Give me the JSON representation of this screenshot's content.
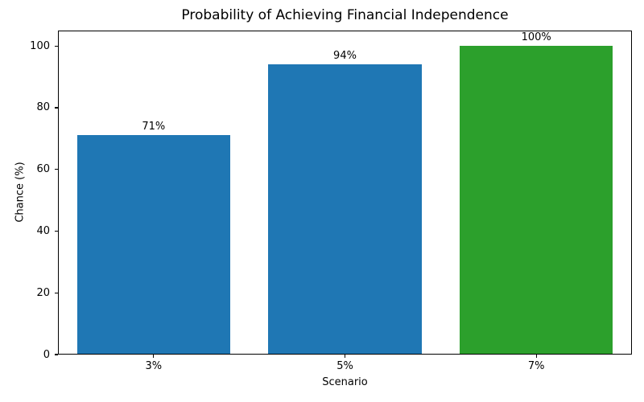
{
  "chart_data": {
    "type": "bar",
    "title": "Probability of Achieving Financial Independence",
    "xlabel": "Scenario",
    "ylabel": "Chance (%)",
    "categories": [
      "3%",
      "5%",
      "7%"
    ],
    "values": [
      71,
      94,
      100
    ],
    "bar_labels": [
      "71%",
      "94%",
      "100%"
    ],
    "bar_colors": [
      "#1f77b4",
      "#1f77b4",
      "#2ca02c"
    ],
    "ylim": [
      0,
      105
    ],
    "yticks": [
      0,
      20,
      40,
      60,
      80,
      100
    ],
    "bar_width_fraction": 0.8,
    "grid": false,
    "legend": false,
    "background_color": "#ffffff",
    "axis_color": "#000000"
  }
}
